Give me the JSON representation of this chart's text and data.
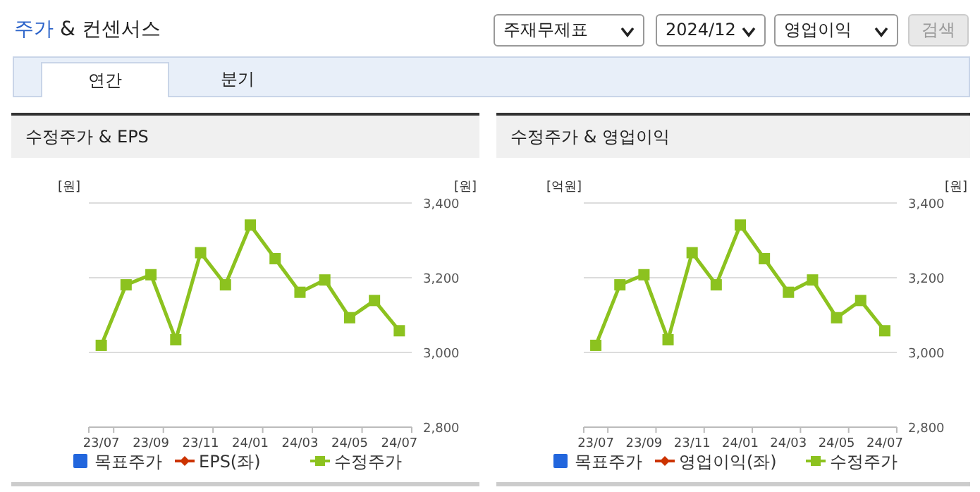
{
  "chart_data": [
    {
      "type": "other",
      "title": "주가 & 컨센서스",
      "annotations": [
        "주재무제표",
        "2024/12",
        "영업이익",
        "검색",
        "연간",
        "분기"
      ]
    },
    {
      "type": "line",
      "title": "수정주가 & EPS",
      "ylabel": "[원]",
      "y2label": "[원]",
      "categories": [
        "23/07",
        null,
        "23/09",
        null,
        "23/11",
        null,
        "24/01",
        null,
        "24/03",
        null,
        "24/05",
        null,
        "24/07"
      ],
      "y2lim": [
        2800,
        3400
      ],
      "y2ticks": [
        {
          "value": 2800,
          "label": "2,800"
        },
        {
          "value": 3000,
          "label": "3,000"
        },
        {
          "value": 3200,
          "label": "3,200"
        },
        {
          "value": 3400,
          "label": "3,400"
        }
      ],
      "grid": "y",
      "legend": "bottom",
      "series": [
        {
          "name": "목표주가",
          "type": "bar",
          "color": "#2266dd",
          "axis": "y2",
          "values": [
            null,
            null,
            null,
            null,
            null,
            null,
            null,
            null,
            null,
            null,
            null,
            null,
            null
          ]
        },
        {
          "name": "EPS(좌)",
          "type": "line",
          "color": "#cc3300",
          "marker": "diamond",
          "values": [
            null,
            null,
            null,
            null,
            null,
            null,
            null,
            null,
            null,
            null,
            null,
            null,
            null
          ]
        },
        {
          "name": "수정주가",
          "type": "line",
          "color": "#8cc21f",
          "marker": "square",
          "axis": "y2",
          "values": [
            3019,
            3181,
            3208,
            3034,
            3267,
            3181,
            3341,
            3251,
            3161,
            3194,
            3093,
            3139,
            3058
          ]
        }
      ]
    },
    {
      "type": "line",
      "title": "수정주가 & 영업이익",
      "ylabel": "[억원]",
      "y2label": "[원]",
      "categories": [
        "23/07",
        null,
        "23/09",
        null,
        "23/11",
        null,
        "24/01",
        null,
        "24/03",
        null,
        "24/05",
        null,
        "24/07"
      ],
      "y2lim": [
        2800,
        3400
      ],
      "y2ticks": [
        {
          "value": 2800,
          "label": "2,800"
        },
        {
          "value": 3000,
          "label": "3,000"
        },
        {
          "value": 3200,
          "label": "3,200"
        },
        {
          "value": 3400,
          "label": "3,400"
        }
      ],
      "grid": "y",
      "legend": "bottom",
      "series": [
        {
          "name": "목표주가",
          "type": "bar",
          "color": "#2266dd",
          "axis": "y2",
          "values": [
            null,
            null,
            null,
            null,
            null,
            null,
            null,
            null,
            null,
            null,
            null,
            null,
            null
          ]
        },
        {
          "name": "영업이익(좌)",
          "type": "line",
          "color": "#cc3300",
          "marker": "diamond",
          "values": [
            null,
            null,
            null,
            null,
            null,
            null,
            null,
            null,
            null,
            null,
            null,
            null,
            null
          ]
        },
        {
          "name": "수정주가",
          "type": "line",
          "color": "#8cc21f",
          "marker": "square",
          "axis": "y2",
          "values": [
            3019,
            3181,
            3208,
            3034,
            3267,
            3181,
            3341,
            3251,
            3161,
            3194,
            3093,
            3139,
            3058
          ]
        }
      ]
    }
  ]
}
